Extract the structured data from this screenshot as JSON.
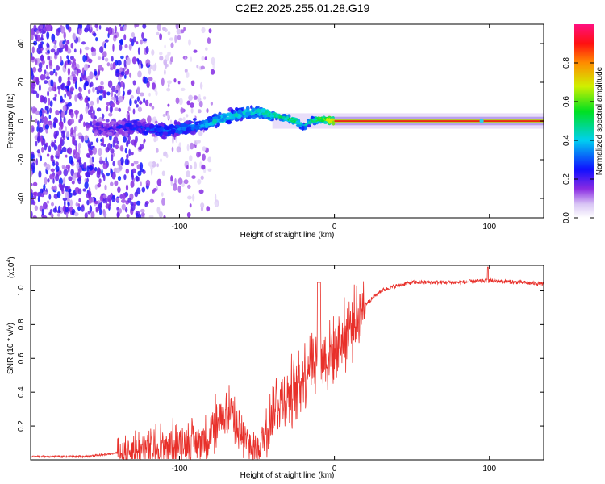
{
  "title": "C2E2.2025.255.01.28.G19",
  "chart_data": [
    {
      "type": "heatmap",
      "xlabel": "Height of straight line (km)",
      "ylabel": "Frequency (Hz)",
      "xlim": [
        -196,
        135
      ],
      "ylim": [
        -50,
        50
      ],
      "xticks": [
        -100,
        0,
        100
      ],
      "xtick_labels": [
        "-100",
        "0",
        "100"
      ],
      "yticks": [
        -40,
        -20,
        0,
        20,
        40
      ],
      "ytick_labels": [
        "-40",
        "-20",
        "0",
        "20",
        "40"
      ],
      "colorbar": {
        "label": "Normalized spectral amplitude",
        "ticks": [
          0.0,
          0.2,
          0.4,
          0.6,
          0.8
        ],
        "tick_labels": [
          "0.0",
          "0.2",
          "0.4",
          "0.6",
          "0.8"
        ],
        "range": [
          0,
          1
        ]
      },
      "ridge": {
        "x": [
          -150,
          -130,
          -110,
          -100,
          -90,
          -80,
          -70,
          -60,
          -50,
          -40,
          -30,
          -25,
          -20,
          -15,
          -10,
          0,
          50,
          95,
          135
        ],
        "freq": [
          -4,
          -3,
          -5,
          -4,
          -3,
          -1,
          2,
          4,
          5,
          3,
          1,
          0,
          -3,
          0,
          1,
          0,
          0,
          0,
          0
        ],
        "amplitude": [
          0.2,
          0.25,
          0.3,
          0.32,
          0.35,
          0.4,
          0.45,
          0.42,
          0.45,
          0.5,
          0.5,
          0.55,
          0.4,
          0.5,
          0.55,
          0.9,
          0.95,
          0.95,
          0.9
        ]
      }
    },
    {
      "type": "line",
      "xlabel": "Height of straight line (km)",
      "ylabel": "SNR (10 * v/v)",
      "y_multiplier": "(x10",
      "y_multiplier_exp": "4",
      "xlim": [
        -196,
        135
      ],
      "ylim": [
        0,
        1.15
      ],
      "xticks": [
        -100,
        0,
        100
      ],
      "xtick_labels": [
        "-100",
        "0",
        "100"
      ],
      "yticks": [
        0.2,
        0.4,
        0.6,
        0.8,
        1.0
      ],
      "ytick_labels": [
        "0.2",
        "0.4",
        "0.6",
        "0.8",
        "1.0"
      ],
      "color": "#e8302a",
      "series": [
        {
          "name": "SNR",
          "x": [
            -196,
            -160,
            -140,
            -120,
            -110,
            -100,
            -90,
            -80,
            -75,
            -70,
            -65,
            -60,
            -55,
            -50,
            -45,
            -40,
            -35,
            -30,
            -25,
            -20,
            -15,
            -10,
            -5,
            0,
            10,
            20,
            30,
            40,
            50,
            60,
            80,
            100,
            120,
            135
          ],
          "y": [
            0.02,
            0.02,
            0.04,
            0.06,
            0.08,
            0.1,
            0.1,
            0.14,
            0.2,
            0.3,
            0.25,
            0.15,
            0.08,
            0.05,
            0.15,
            0.3,
            0.35,
            0.38,
            0.42,
            0.5,
            0.6,
            0.62,
            0.6,
            0.65,
            0.78,
            0.92,
            1.0,
            1.03,
            1.05,
            1.05,
            1.05,
            1.06,
            1.05,
            1.04
          ]
        }
      ]
    }
  ]
}
